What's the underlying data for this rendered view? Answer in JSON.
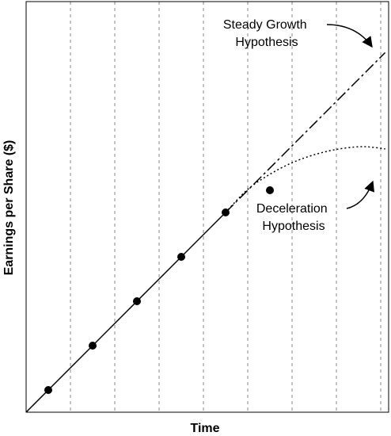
{
  "chart_data": {
    "type": "line",
    "title": "",
    "xlabel": "Time",
    "ylabel": "Earnings per Share ($)",
    "x_tick_labels": false,
    "y_tick_labels": false,
    "grid": "vertical-dashed",
    "x_gridlines": [
      1,
      2,
      3,
      4,
      5,
      6,
      7,
      8
    ],
    "xlim": [
      0,
      8.2
    ],
    "ylim": [
      0,
      8.2
    ],
    "series": [
      {
        "style": "solid",
        "x": [
          0,
          4.5
        ],
        "y": [
          0,
          4.5
        ]
      },
      {
        "style": "long-dash",
        "x": [
          4.5,
          8.1
        ],
        "y": [
          4.5,
          8.1
        ]
      },
      {
        "style": "dotted",
        "x": [
          4.5,
          5.0,
          5.5,
          6.0,
          6.5,
          7.0,
          7.5,
          7.8,
          8.1
        ],
        "y": [
          4.5,
          5.02,
          5.36,
          5.62,
          5.8,
          5.92,
          5.98,
          5.97,
          5.93
        ]
      }
    ],
    "points": {
      "x": [
        0.5,
        1.5,
        2.5,
        3.5,
        4.5,
        5.5
      ],
      "y": [
        0.5,
        1.5,
        2.5,
        3.5,
        4.5,
        5.0
      ]
    },
    "annotations": [
      {
        "lines": [
          "Steady Growth",
          "Hypothesis"
        ],
        "points_to": "long-dash trend line"
      },
      {
        "lines": [
          "Deceleration",
          "Hypothesis"
        ],
        "points_to": "dotted curve"
      }
    ]
  }
}
